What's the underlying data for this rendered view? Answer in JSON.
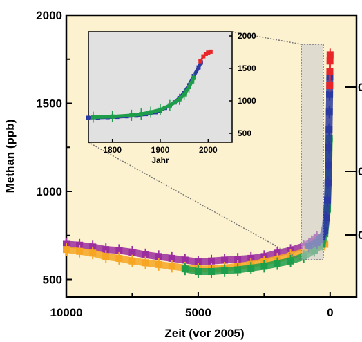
{
  "chart_data": {
    "type": "scatter",
    "xlabel": "Zeit (vor 2005)",
    "ylabel": "Methan (ppb)",
    "x_ticks": [
      "10000",
      "5000",
      "0"
    ],
    "y_ticks": [
      "2000",
      "1500",
      "1000",
      "500"
    ],
    "xlim": [
      10000,
      -1000
    ],
    "ylim": [
      400,
      2000
    ],
    "grid": false,
    "colors": {
      "background": "#fdf2cf",
      "purple": "#9b2e9f",
      "orange": "#f6a623",
      "green": "#1e9e4a",
      "blue": "#2b3aa0",
      "red": "#e8262a",
      "inset_background": "#e1e1e1"
    },
    "series": [
      {
        "color": "purple",
        "x": [
          10000,
          9500,
          9000,
          8500,
          8000,
          7500,
          7000,
          6500,
          6000,
          5500,
          5000,
          4500,
          4000,
          3500,
          3000,
          2500,
          2000,
          1500,
          1000,
          700,
          500
        ],
        "y": [
          700,
          695,
          685,
          670,
          665,
          655,
          640,
          630,
          620,
          610,
          600,
          605,
          610,
          615,
          620,
          630,
          650,
          665,
          690,
          715,
          740
        ]
      },
      {
        "color": "orange",
        "x": [
          10000,
          9500,
          9000,
          8500,
          8000,
          7500,
          7000,
          6500,
          6000,
          5500,
          5000,
          4500,
          4000,
          3500,
          3000,
          2500,
          2000,
          1500,
          1000,
          500,
          200
        ],
        "y": [
          670,
          660,
          650,
          630,
          620,
          605,
          595,
          585,
          575,
          565,
          560,
          560,
          565,
          575,
          585,
          600,
          615,
          635,
          655,
          680,
          700
        ]
      },
      {
        "color": "green",
        "x": [
          5500,
          5000,
          4500,
          4000,
          3500,
          3000,
          2500,
          2000,
          1500,
          1000,
          600,
          300,
          200,
          100,
          60,
          30
        ],
        "y": [
          560,
          545,
          545,
          550,
          555,
          565,
          575,
          590,
          605,
          630,
          665,
          700,
          760,
          900,
          1100,
          1300
        ]
      },
      {
        "color": "blue",
        "x": [
          800,
          500,
          300,
          200,
          150,
          100,
          80,
          60,
          50,
          40,
          30,
          20,
          10
        ],
        "y": [
          690,
          710,
          740,
          780,
          850,
          950,
          1050,
          1150,
          1250,
          1350,
          1450,
          1550,
          1650
        ]
      },
      {
        "color": "red",
        "x": [
          15,
          10,
          5,
          0
        ],
        "y": [
          1600,
          1680,
          1740,
          1775
        ]
      }
    ],
    "inset": {
      "xlabel": "Jahr",
      "x_ticks": [
        "1800",
        "1900",
        "2000"
      ],
      "y_ticks": [
        "2000",
        "1500",
        "1000",
        "500"
      ],
      "xlim": [
        1750,
        2050
      ],
      "ylim": [
        300,
        2100
      ],
      "series": [
        {
          "color": "blue",
          "x": [
            1750,
            1770,
            1790,
            1810,
            1830,
            1850,
            1870,
            1890,
            1900,
            1910,
            1920,
            1930,
            1940,
            1950,
            1960,
            1970,
            1980,
            1985
          ],
          "y": [
            700,
            705,
            710,
            715,
            725,
            735,
            760,
            790,
            820,
            860,
            900,
            950,
            1020,
            1110,
            1230,
            1380,
            1520,
            1600
          ]
        },
        {
          "color": "green",
          "x": [
            1760,
            1800,
            1840,
            1860,
            1880,
            1900,
            1920,
            1940,
            1950,
            1960,
            1970
          ],
          "y": [
            710,
            720,
            740,
            760,
            790,
            830,
            900,
            1000,
            1080,
            1200,
            1350
          ]
        },
        {
          "color": "red",
          "x": [
            1984,
            1990,
            1995,
            2000,
            2005
          ],
          "y": [
            1620,
            1700,
            1740,
            1760,
            1775
          ]
        }
      ]
    },
    "edge_labels": [
      "0",
      "0",
      "0"
    ]
  }
}
